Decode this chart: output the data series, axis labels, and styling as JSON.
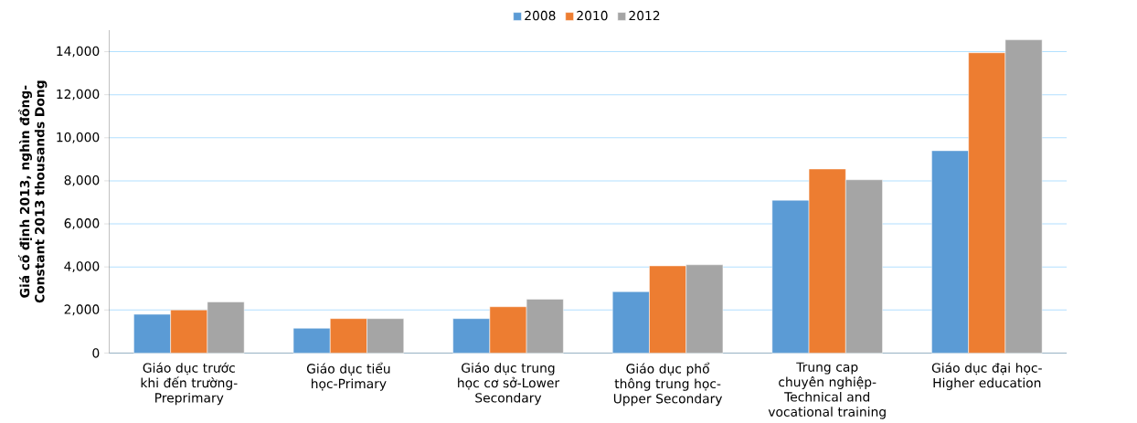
{
  "chart_data": {
    "type": "bar",
    "categories": [
      "Giáo dục trước khi đến trường-Preprimary",
      "Giáo dục tiểu học-Primary",
      "Giáo dục trung học cơ sở-Lower Secondary",
      "Giáo dục phổ thông trung học-Upper Secondary",
      "Trung cap chuyên nghiệp-Technical and vocational training",
      "Giáo dục đại học-Higher education"
    ],
    "series": [
      {
        "name": "2008",
        "color": "#5b9bd5",
        "values": [
          1800,
          1150,
          1600,
          2850,
          7100,
          9400
        ]
      },
      {
        "name": "2010",
        "color": "#ed7d31",
        "values": [
          2000,
          1600,
          2150,
          4050,
          8550,
          13950
        ]
      },
      {
        "name": "2012",
        "color": "#a5a5a5",
        "values": [
          2370,
          1600,
          2500,
          4100,
          8050,
          14550
        ]
      }
    ],
    "ylabel": "Giá cố định 2013, nghìn đồng-Constant 2013 thousands Dong",
    "ylim": [
      0,
      15000
    ],
    "yticks": [
      {
        "value": 0,
        "label": "0"
      },
      {
        "value": 2000,
        "label": "2,000"
      },
      {
        "value": 4000,
        "label": "4,000"
      },
      {
        "value": 6000,
        "label": "6,000"
      },
      {
        "value": 8000,
        "label": "8,000"
      },
      {
        "value": 10000,
        "label": "10,000"
      },
      {
        "value": 12000,
        "label": "12,000"
      },
      {
        "value": 14000,
        "label": "14,000"
      }
    ],
    "grid": "y",
    "legend": "top"
  }
}
